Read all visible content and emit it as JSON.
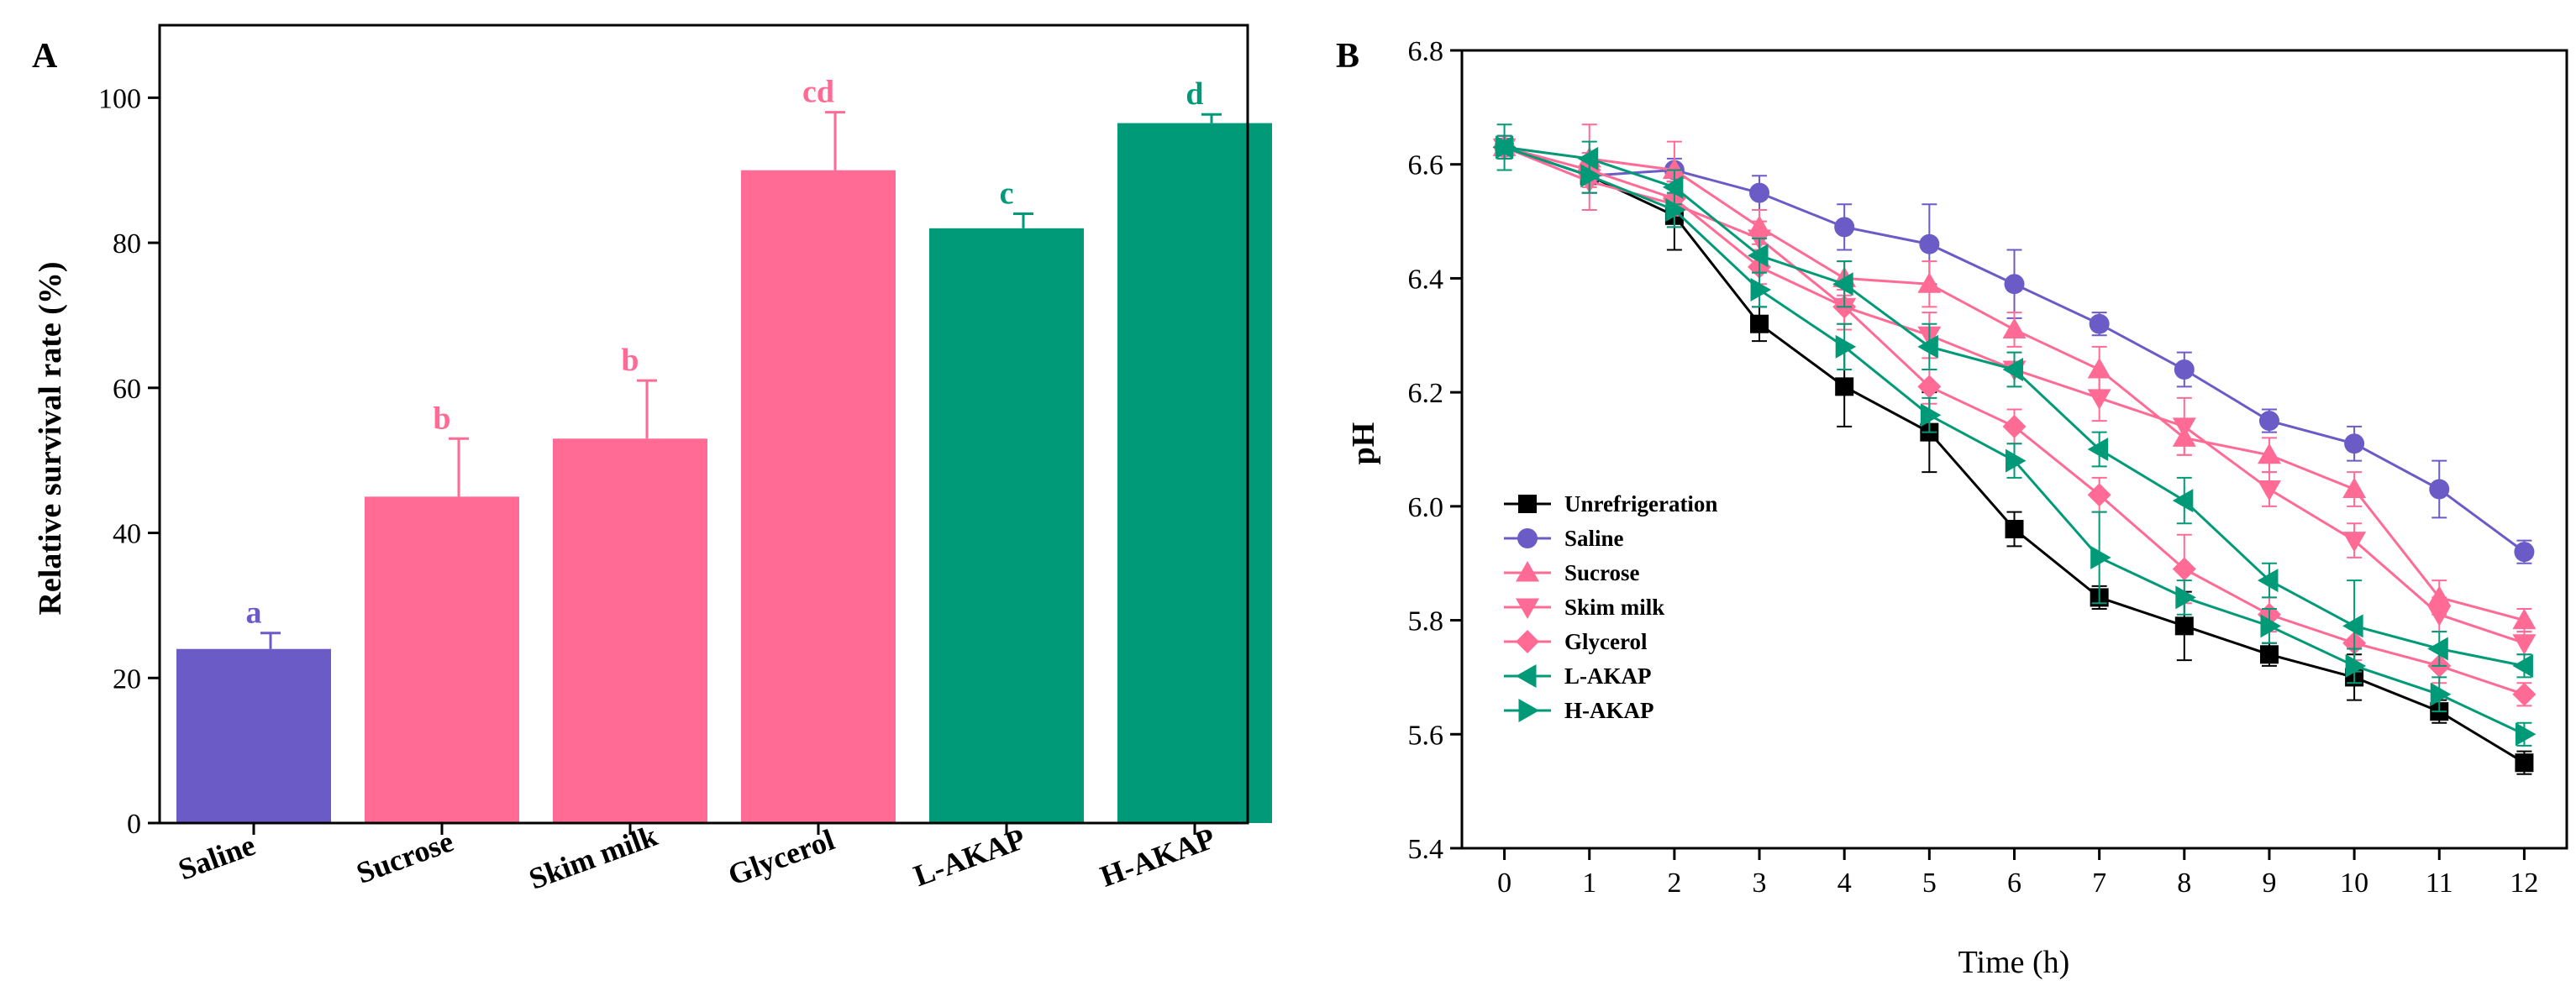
{
  "chart_data": [
    {
      "panel": "A",
      "type": "bar",
      "ylabel": "Relative survival rate (%)",
      "xlabel": "",
      "ylim": [
        0,
        110
      ],
      "yticks": [
        0,
        20,
        40,
        60,
        80,
        100
      ],
      "categories": [
        "Saline",
        "Sucrose",
        "Skim milk",
        "Glycerol",
        "L-AKAP",
        "H-AKAP"
      ],
      "values": [
        24,
        45,
        53,
        90,
        82,
        96.5
      ],
      "errors": [
        2.2,
        8,
        8,
        8,
        2,
        1.2
      ],
      "significance": [
        "a",
        "b",
        "b",
        "cd",
        "c",
        "d"
      ],
      "colors": [
        "#6b5bc7",
        "#ff6b95",
        "#ff6b95",
        "#ff6b95",
        "#009a78",
        "#009a78"
      ]
    },
    {
      "panel": "B",
      "type": "line",
      "xlabel": "Time (h)",
      "ylabel": "pH",
      "xlim": [
        -0.5,
        12.5
      ],
      "ylim": [
        5.4,
        6.8
      ],
      "x": [
        0,
        1,
        2,
        3,
        4,
        5,
        6,
        7,
        8,
        9,
        10,
        11,
        12
      ],
      "yticks": [
        "5.4",
        "5.6",
        "5.8",
        "6.0",
        "6.2",
        "6.4",
        "6.6",
        "6.8"
      ],
      "legend_position": "lower-left",
      "series": [
        {
          "name": "Unrefrigeration",
          "color": "#000000",
          "marker": "square",
          "values": [
            6.63,
            6.58,
            6.51,
            6.32,
            6.21,
            6.13,
            5.96,
            5.84,
            5.79,
            5.74,
            5.7,
            5.64,
            5.55
          ],
          "errors": [
            0.02,
            0.03,
            0.06,
            0.03,
            0.07,
            0.07,
            0.03,
            0.02,
            0.06,
            0.02,
            0.04,
            0.02,
            0.02
          ]
        },
        {
          "name": "Saline",
          "color": "#6b5bc7",
          "marker": "circle",
          "values": [
            6.63,
            6.58,
            6.59,
            6.55,
            6.49,
            6.46,
            6.39,
            6.32,
            6.24,
            6.15,
            6.11,
            6.03,
            5.92
          ],
          "errors": [
            0.02,
            0.03,
            0.02,
            0.03,
            0.04,
            0.07,
            0.06,
            0.02,
            0.03,
            0.02,
            0.03,
            0.05,
            0.02
          ]
        },
        {
          "name": "Sucrose",
          "color": "#ff6b95",
          "marker": "triangle-up",
          "values": [
            6.63,
            6.61,
            6.59,
            6.49,
            6.4,
            6.39,
            6.31,
            6.24,
            6.12,
            6.09,
            6.03,
            5.84,
            5.8
          ],
          "errors": [
            0.02,
            0.06,
            0.05,
            0.03,
            0.03,
            0.04,
            0.03,
            0.04,
            0.03,
            0.03,
            0.03,
            0.03,
            0.02
          ]
        },
        {
          "name": "Skim milk",
          "color": "#ff6b95",
          "marker": "triangle-down",
          "values": [
            6.63,
            6.57,
            6.53,
            6.47,
            6.35,
            6.3,
            6.24,
            6.19,
            6.14,
            6.03,
            5.94,
            5.81,
            5.76
          ],
          "errors": [
            0.02,
            0.05,
            0.04,
            0.03,
            0.03,
            0.04,
            0.03,
            0.04,
            0.05,
            0.03,
            0.03,
            0.03,
            0.02
          ]
        },
        {
          "name": "Glycerol",
          "color": "#ff6b95",
          "marker": "diamond",
          "values": [
            6.63,
            6.59,
            6.54,
            6.42,
            6.35,
            6.21,
            6.14,
            6.02,
            5.89,
            5.81,
            5.76,
            5.72,
            5.67
          ],
          "errors": [
            0.02,
            0.03,
            0.03,
            0.03,
            0.04,
            0.03,
            0.03,
            0.03,
            0.06,
            0.03,
            0.03,
            0.03,
            0.02
          ]
        },
        {
          "name": "L-AKAP",
          "color": "#009a78",
          "marker": "triangle-left",
          "values": [
            6.63,
            6.61,
            6.56,
            6.44,
            6.39,
            6.28,
            6.24,
            6.1,
            6.01,
            5.87,
            5.79,
            5.75,
            5.72
          ],
          "errors": [
            0.04,
            0.03,
            0.03,
            0.03,
            0.04,
            0.04,
            0.03,
            0.03,
            0.04,
            0.03,
            0.08,
            0.03,
            0.02
          ]
        },
        {
          "name": "H-AKAP",
          "color": "#009a78",
          "marker": "triangle-right",
          "values": [
            6.63,
            6.58,
            6.52,
            6.38,
            6.28,
            6.16,
            6.08,
            5.91,
            5.84,
            5.79,
            5.72,
            5.67,
            5.6
          ],
          "errors": [
            0.02,
            0.03,
            0.03,
            0.03,
            0.04,
            0.03,
            0.03,
            0.08,
            0.03,
            0.03,
            0.03,
            0.03,
            0.02
          ]
        }
      ]
    }
  ],
  "panel_labels": {
    "a": "A",
    "b": "B"
  }
}
